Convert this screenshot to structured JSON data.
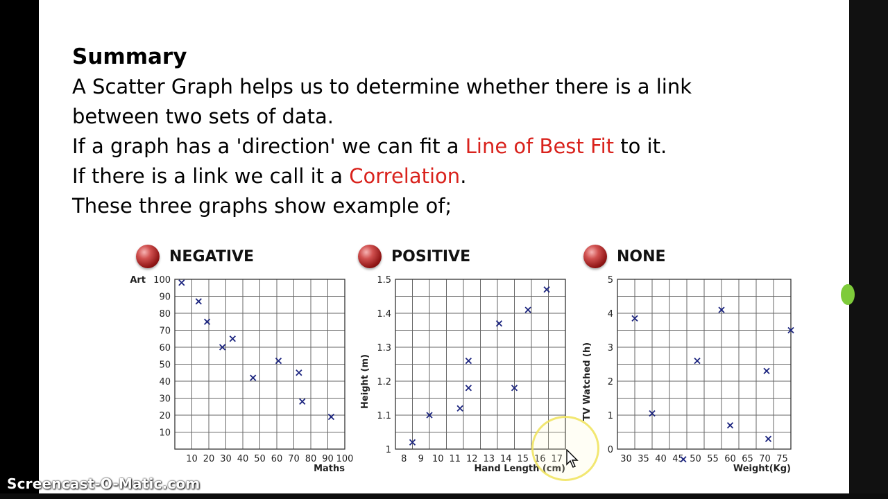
{
  "summary": {
    "title": "Summary",
    "line1": "A Scatter Graph helps us to determine whether there is a link",
    "line2": "between two sets of data.",
    "line3_a": "If a graph has a 'direction' we can fit a ",
    "line3_red": "Line of Best Fit",
    "line3_b": " to it.",
    "line4_a": "If there is a link we call it a ",
    "line4_red": "Correlation",
    "line4_b": ".",
    "line5": "These three graphs show example of;"
  },
  "colors": {
    "highlight_red": "#d9221c",
    "marker_blue": "#1a237e",
    "grid": "#666666"
  },
  "watermark": "Screencast-O-Matic.com",
  "chart_data": [
    {
      "type": "scatter",
      "title": "NEGATIVE",
      "xlabel": "Maths",
      "ylabel": "Art",
      "xlim": [
        0,
        100
      ],
      "ylim": [
        0,
        100
      ],
      "x_ticks": [
        "10",
        "20",
        "30",
        "40",
        "50",
        "60",
        "70",
        "80",
        "90",
        "100"
      ],
      "y_ticks": [
        "10",
        "20",
        "30",
        "40",
        "50",
        "60",
        "70",
        "80",
        "90",
        "100"
      ],
      "points": [
        [
          4,
          98
        ],
        [
          14,
          87
        ],
        [
          19,
          75
        ],
        [
          28,
          60
        ],
        [
          34,
          65
        ],
        [
          46,
          42
        ],
        [
          61,
          52
        ],
        [
          73,
          45
        ],
        [
          75,
          28
        ],
        [
          92,
          19
        ]
      ],
      "grid": true
    },
    {
      "type": "scatter",
      "title": "POSITIVE",
      "xlabel": "Hand Length (cm)",
      "ylabel": "Height (m)",
      "xlim": [
        7,
        17
      ],
      "ylim": [
        1.0,
        1.5
      ],
      "x_ticks": [
        "8",
        "9",
        "10",
        "11",
        "12",
        "13",
        "14",
        "15",
        "16",
        "17"
      ],
      "y_ticks": [
        "1",
        "1.1",
        "1.2",
        "1.3",
        "1.4",
        "1.5"
      ],
      "points": [
        [
          8,
          1.02
        ],
        [
          9,
          1.1
        ],
        [
          10.8,
          1.12
        ],
        [
          11.3,
          1.26
        ],
        [
          11.3,
          1.18
        ],
        [
          13.1,
          1.37
        ],
        [
          14,
          1.18
        ],
        [
          14.8,
          1.41
        ],
        [
          15.9,
          1.47
        ]
      ],
      "grid": true
    },
    {
      "type": "scatter",
      "title": "NONE",
      "xlabel": "Weight(Kg)",
      "ylabel": "TV Watched (h)",
      "xlim": [
        25,
        75
      ],
      "ylim": [
        0,
        5
      ],
      "x_ticks": [
        "30",
        "35",
        "40",
        "45",
        "50",
        "55",
        "60",
        "65",
        "70",
        "75"
      ],
      "y_ticks": [
        "0",
        "1",
        "2",
        "3",
        "4",
        "5"
      ],
      "points": [
        [
          30,
          3.85
        ],
        [
          35,
          1.05
        ],
        [
          44,
          -0.3
        ],
        [
          48,
          2.6
        ],
        [
          55,
          4.1
        ],
        [
          57.5,
          0.7
        ],
        [
          68,
          2.3
        ],
        [
          68.5,
          0.3
        ],
        [
          75,
          3.5
        ]
      ],
      "grid": true
    }
  ]
}
